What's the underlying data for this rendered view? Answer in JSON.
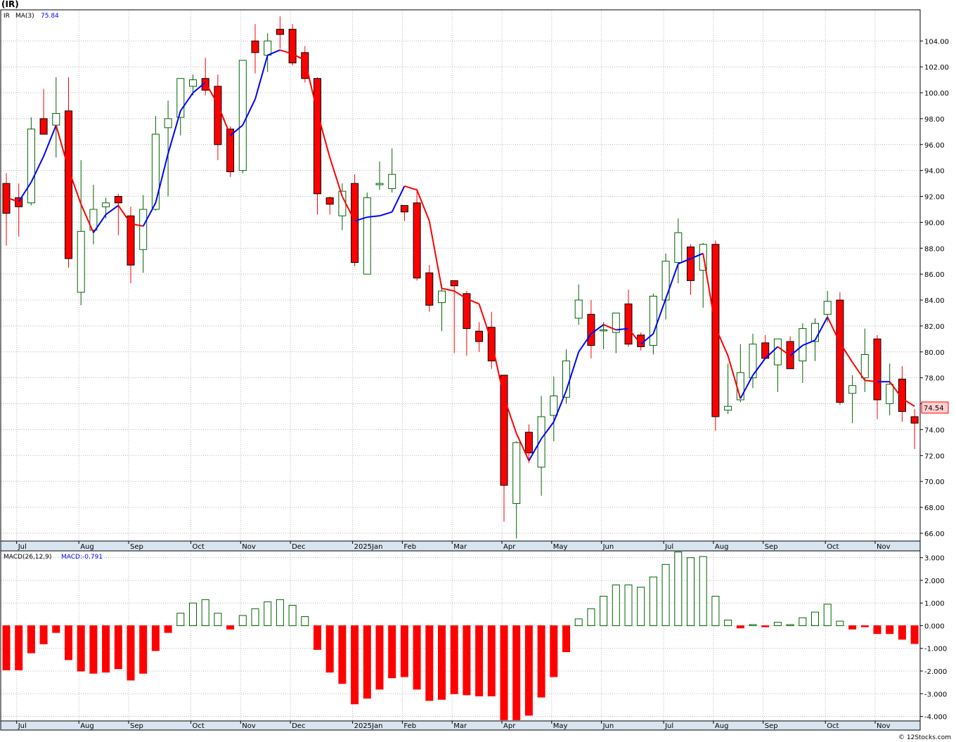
{
  "title": "(IR)",
  "legend": {
    "symbol": "IR",
    "ma_label": "MA(3)",
    "ma_value": "75.84",
    "ma_color": "#0000ff"
  },
  "macd_legend": {
    "label": "MACD(26,12,9)",
    "value_label": "MACD:-0.791",
    "value_color": "#0000ff"
  },
  "last_price_label": "74.54",
  "watermark": "© 12Stocks.com",
  "colors": {
    "down": "#ff0000",
    "up": "#ffffff",
    "up_border": "#006400",
    "ma_up": "#0000ff",
    "ma_down": "#ff0000",
    "axis_band": "#d8e4f0",
    "grid": "#b8b8b8"
  },
  "chart_data": {
    "type": "candlestick",
    "price_axis": {
      "ylim": [
        65.4,
        106.4
      ],
      "ticks": [
        "104.00",
        "102.00",
        "100.00",
        "98.00",
        "96.00",
        "94.00",
        "92.00",
        "90.00",
        "88.00",
        "86.00",
        "84.00",
        "82.00",
        "80.00",
        "78.00",
        "76.00",
        "74.00",
        "72.00",
        "70.00",
        "68.00",
        "66.00"
      ]
    },
    "macd_axis": {
      "ylim": [
        -4.2,
        3.3
      ],
      "ticks": [
        "3.000",
        "2.000",
        "1.000",
        "0.000",
        "-1.000",
        "-2.000",
        "-3.000",
        "-4.000"
      ]
    },
    "months": [
      {
        "label": "Jul",
        "week": 1
      },
      {
        "label": "Aug",
        "week": 6
      },
      {
        "label": "Sep",
        "week": 10
      },
      {
        "label": "Oct",
        "week": 15
      },
      {
        "label": "Nov",
        "week": 19
      },
      {
        "label": "Dec",
        "week": 23
      },
      {
        "label": "2025Jan",
        "week": 28
      },
      {
        "label": "Feb",
        "week": 32
      },
      {
        "label": "Mar",
        "week": 36
      },
      {
        "label": "Apr",
        "week": 40
      },
      {
        "label": "May",
        "week": 44
      },
      {
        "label": "Jun",
        "week": 48
      },
      {
        "label": "Jul",
        "week": 53
      },
      {
        "label": "Aug",
        "week": 57
      },
      {
        "label": "Sep",
        "week": 61
      },
      {
        "label": "Oct",
        "week": 66
      },
      {
        "label": "Nov",
        "week": 70
      }
    ],
    "candles": [
      {
        "o": 93.0,
        "h": 93.8,
        "l": 88.2,
        "c": 90.7
      },
      {
        "o": 91.9,
        "h": 93.0,
        "l": 88.9,
        "c": 91.2
      },
      {
        "o": 91.5,
        "h": 98.1,
        "l": 91.3,
        "c": 97.2
      },
      {
        "o": 98.0,
        "h": 100.3,
        "l": 96.8,
        "c": 96.8
      },
      {
        "o": 97.5,
        "h": 101.2,
        "l": 95.0,
        "c": 98.4
      },
      {
        "o": 98.6,
        "h": 101.2,
        "l": 86.5,
        "c": 87.2
      },
      {
        "o": 84.6,
        "h": 94.8,
        "l": 83.6,
        "c": 89.3
      },
      {
        "o": 89.4,
        "h": 92.9,
        "l": 88.3,
        "c": 91.0
      },
      {
        "o": 91.2,
        "h": 91.9,
        "l": 90.3,
        "c": 91.5
      },
      {
        "o": 92.0,
        "h": 92.2,
        "l": 89.0,
        "c": 91.5
      },
      {
        "o": 90.5,
        "h": 91.2,
        "l": 85.3,
        "c": 86.7
      },
      {
        "o": 87.9,
        "h": 92.1,
        "l": 86.1,
        "c": 91.0
      },
      {
        "o": 91.0,
        "h": 98.2,
        "l": 90.9,
        "c": 96.8
      },
      {
        "o": 97.3,
        "h": 99.4,
        "l": 92.0,
        "c": 98.0
      },
      {
        "o": 98.1,
        "h": 101.1,
        "l": 96.7,
        "c": 101.1
      },
      {
        "o": 100.5,
        "h": 101.4,
        "l": 99.8,
        "c": 101.0
      },
      {
        "o": 101.1,
        "h": 102.7,
        "l": 99.8,
        "c": 100.2
      },
      {
        "o": 100.5,
        "h": 101.4,
        "l": 94.8,
        "c": 96.0
      },
      {
        "o": 97.2,
        "h": 97.4,
        "l": 93.5,
        "c": 93.9
      },
      {
        "o": 94.0,
        "h": 102.5,
        "l": 93.8,
        "c": 102.5
      },
      {
        "o": 104.0,
        "h": 105.3,
        "l": 101.5,
        "c": 103.1
      },
      {
        "o": 102.9,
        "h": 104.6,
        "l": 101.6,
        "c": 104.0
      },
      {
        "o": 104.9,
        "h": 105.9,
        "l": 103.4,
        "c": 104.5
      },
      {
        "o": 104.9,
        "h": 105.3,
        "l": 102.1,
        "c": 102.3
      },
      {
        "o": 103.1,
        "h": 103.6,
        "l": 100.8,
        "c": 101.1
      },
      {
        "o": 101.1,
        "h": 101.2,
        "l": 90.6,
        "c": 92.2
      },
      {
        "o": 91.9,
        "h": 92.0,
        "l": 90.6,
        "c": 91.4
      },
      {
        "o": 90.5,
        "h": 93.0,
        "l": 89.4,
        "c": 92.4
      },
      {
        "o": 93.0,
        "h": 93.7,
        "l": 86.6,
        "c": 86.9
      },
      {
        "o": 86.0,
        "h": 92.3,
        "l": 86.0,
        "c": 91.9
      },
      {
        "o": 92.9,
        "h": 94.7,
        "l": 92.5,
        "c": 93.0
      },
      {
        "o": 92.6,
        "h": 95.7,
        "l": 92.3,
        "c": 93.7
      },
      {
        "o": 91.3,
        "h": 91.3,
        "l": 90.1,
        "c": 90.8
      },
      {
        "o": 91.5,
        "h": 92.6,
        "l": 85.5,
        "c": 85.7
      },
      {
        "o": 86.1,
        "h": 86.7,
        "l": 83.1,
        "c": 83.6
      },
      {
        "o": 83.8,
        "h": 85.2,
        "l": 81.6,
        "c": 84.7
      },
      {
        "o": 85.5,
        "h": 85.5,
        "l": 79.9,
        "c": 85.1
      },
      {
        "o": 84.5,
        "h": 84.7,
        "l": 79.7,
        "c": 81.8
      },
      {
        "o": 81.6,
        "h": 82.3,
        "l": 80.0,
        "c": 80.8
      },
      {
        "o": 81.9,
        "h": 83.1,
        "l": 78.7,
        "c": 79.3
      },
      {
        "o": 78.2,
        "h": 78.2,
        "l": 66.9,
        "c": 69.7
      },
      {
        "o": 68.3,
        "h": 73.1,
        "l": 65.6,
        "c": 73.0
      },
      {
        "o": 73.8,
        "h": 74.4,
        "l": 71.4,
        "c": 72.2
      },
      {
        "o": 71.1,
        "h": 76.6,
        "l": 68.9,
        "c": 75.0
      },
      {
        "o": 75.1,
        "h": 78.1,
        "l": 73.1,
        "c": 76.6
      },
      {
        "o": 76.5,
        "h": 80.2,
        "l": 76.0,
        "c": 79.3
      },
      {
        "o": 82.6,
        "h": 85.2,
        "l": 82.1,
        "c": 84.0
      },
      {
        "o": 82.9,
        "h": 84.0,
        "l": 79.5,
        "c": 80.5
      },
      {
        "o": 81.7,
        "h": 82.3,
        "l": 80.2,
        "c": 81.7
      },
      {
        "o": 81.5,
        "h": 83.0,
        "l": 79.9,
        "c": 83.0
      },
      {
        "o": 83.7,
        "h": 84.8,
        "l": 80.4,
        "c": 80.6
      },
      {
        "o": 81.3,
        "h": 81.5,
        "l": 80.1,
        "c": 80.4
      },
      {
        "o": 80.5,
        "h": 84.5,
        "l": 79.8,
        "c": 84.3
      },
      {
        "o": 84.0,
        "h": 87.6,
        "l": 82.5,
        "c": 87.0
      },
      {
        "o": 86.9,
        "h": 90.3,
        "l": 85.3,
        "c": 89.2
      },
      {
        "o": 88.1,
        "h": 88.3,
        "l": 84.4,
        "c": 85.5
      },
      {
        "o": 86.3,
        "h": 88.4,
        "l": 83.4,
        "c": 88.3
      },
      {
        "o": 88.3,
        "h": 88.6,
        "l": 73.9,
        "c": 75.0
      },
      {
        "o": 75.5,
        "h": 79.1,
        "l": 75.2,
        "c": 75.8
      },
      {
        "o": 76.3,
        "h": 80.6,
        "l": 76.1,
        "c": 78.4
      },
      {
        "o": 78.0,
        "h": 81.4,
        "l": 77.2,
        "c": 80.6
      },
      {
        "o": 80.7,
        "h": 81.3,
        "l": 79.5,
        "c": 79.5
      },
      {
        "o": 79.0,
        "h": 81.0,
        "l": 76.9,
        "c": 81.0
      },
      {
        "o": 80.8,
        "h": 81.2,
        "l": 78.7,
        "c": 78.7
      },
      {
        "o": 79.3,
        "h": 82.2,
        "l": 77.6,
        "c": 81.8
      },
      {
        "o": 80.8,
        "h": 82.6,
        "l": 79.3,
        "c": 82.2
      },
      {
        "o": 82.9,
        "h": 84.7,
        "l": 82.3,
        "c": 83.9
      },
      {
        "o": 84.0,
        "h": 84.6,
        "l": 75.9,
        "c": 76.1
      },
      {
        "o": 76.8,
        "h": 78.2,
        "l": 74.5,
        "c": 77.4
      },
      {
        "o": 78.0,
        "h": 81.8,
        "l": 76.9,
        "c": 79.8
      },
      {
        "o": 81.0,
        "h": 81.3,
        "l": 74.8,
        "c": 76.3
      },
      {
        "o": 76.0,
        "h": 79.1,
        "l": 75.1,
        "c": 77.5
      },
      {
        "o": 77.9,
        "h": 78.9,
        "l": 74.6,
        "c": 75.4
      },
      {
        "o": 75.0,
        "h": 75.6,
        "l": 72.5,
        "c": 74.5
      }
    ],
    "ma3": [
      91.9,
      91.6,
      93.1,
      95.1,
      97.5,
      94.1,
      91.4,
      89.2,
      90.6,
      91.3,
      89.9,
      89.7,
      91.5,
      95.3,
      98.6,
      100.0,
      100.8,
      99.1,
      96.7,
      97.5,
      99.5,
      102.9,
      103.3,
      103.0,
      102.5,
      98.5,
      95.0,
      92.0,
      90.1,
      90.4,
      90.5,
      90.8,
      92.8,
      92.5,
      90.1,
      84.9,
      84.7,
      84.1,
      83.7,
      80.8,
      76.5,
      73.7,
      71.6,
      73.3,
      74.6,
      77.0,
      80.0,
      81.4,
      82.1,
      81.7,
      81.8,
      80.6,
      81.4,
      84.1,
      86.8,
      87.2,
      87.6,
      81.9,
      79.7,
      76.4,
      78.2,
      79.5,
      80.4,
      79.7,
      80.5,
      80.9,
      82.7,
      80.7,
      79.2,
      77.8,
      77.7,
      77.7,
      76.4,
      75.8
    ],
    "macd": [
      -1.95,
      -1.95,
      -1.2,
      -0.8,
      -0.3,
      -1.5,
      -2.0,
      -2.1,
      -2.05,
      -1.9,
      -2.4,
      -2.1,
      -1.1,
      -0.3,
      0.55,
      1.0,
      1.15,
      0.55,
      -0.15,
      0.45,
      0.75,
      1.05,
      1.15,
      0.9,
      0.4,
      -1.05,
      -2.05,
      -2.55,
      -3.45,
      -3.2,
      -2.8,
      -2.3,
      -2.25,
      -2.8,
      -3.3,
      -3.25,
      -3.0,
      -3.05,
      -3.1,
      -3.1,
      -4.15,
      -4.15,
      -3.95,
      -3.15,
      -2.25,
      -1.15,
      0.3,
      0.75,
      1.3,
      1.8,
      1.8,
      1.7,
      2.15,
      2.7,
      3.25,
      3.0,
      3.05,
      1.3,
      0.25,
      -0.1,
      0.05,
      -0.05,
      0.15,
      0.05,
      0.35,
      0.6,
      0.95,
      0.2,
      -0.15,
      -0.05,
      -0.35,
      -0.35,
      -0.6,
      -0.79
    ]
  }
}
